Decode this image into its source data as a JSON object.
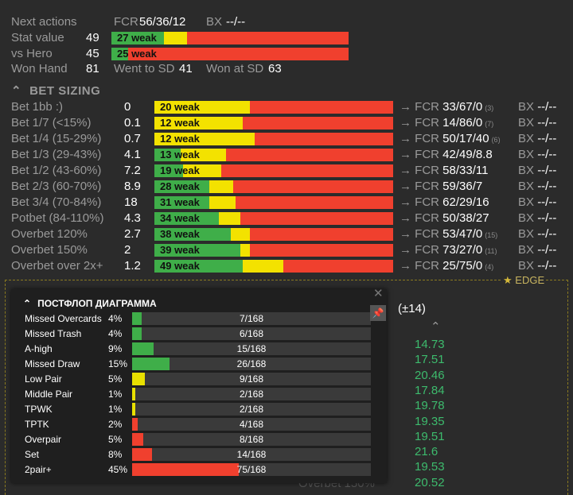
{
  "top": {
    "next_actions": {
      "label": "Next actions",
      "fcr_label": "FCR",
      "fcr": "56/36/12",
      "bx_label": "BX",
      "bx": "--/--"
    },
    "stat_value": {
      "label": "Stat value",
      "value": "49",
      "bar_text": "27 weak",
      "green": 0.22,
      "yellow": 0.1
    },
    "vs_hero": {
      "label": "vs Hero",
      "value": "45",
      "bar_text": "25 weak",
      "green": 0.07,
      "yellow": 0.0
    },
    "won_hand": {
      "label": "Won Hand",
      "value": "81",
      "went_label": "Went to SD",
      "went": "41",
      "won_label": "Won at SD",
      "won": "63"
    }
  },
  "bet_sizing": {
    "title": "BET SIZING",
    "arrow_fcr": "→ FCR",
    "bx_label": "BX",
    "rows": [
      {
        "name": "Bet 1bb :)",
        "num": "0",
        "bar": "20 weak",
        "green": 0,
        "yellow": 0.4,
        "fcr": "33/67/0",
        "n": "(3)",
        "bx": "--/--"
      },
      {
        "name": "Bet 1/7 (<15%)",
        "num": "0.1",
        "bar": "12 weak",
        "green": 0,
        "yellow": 0.37,
        "fcr": "14/86/0",
        "n": "(7)",
        "bx": "--/--"
      },
      {
        "name": "Bet 1/4 (15-29%)",
        "num": "0.7",
        "bar": "12 weak",
        "green": 0,
        "yellow": 0.42,
        "fcr": "50/17/40",
        "n": "(6)",
        "bx": "--/--"
      },
      {
        "name": "Bet 1/3 (29-43%)",
        "num": "4.1",
        "bar": "13 weak",
        "green": 0.11,
        "yellow": 0.19,
        "fcr": "42/49/8.8",
        "n": "",
        "bx": "--/--"
      },
      {
        "name": "Bet 1/2 (43-60%)",
        "num": "7.2",
        "bar": "19 weak",
        "green": 0.12,
        "yellow": 0.16,
        "fcr": "58/33/11",
        "n": "",
        "bx": "--/--"
      },
      {
        "name": "Bet 2/3 (60-70%)",
        "num": "8.9",
        "bar": "28 weak",
        "green": 0.23,
        "yellow": 0.1,
        "fcr": "59/36/7",
        "n": "",
        "bx": "--/--"
      },
      {
        "name": "Bet 3/4 (70-84%)",
        "num": "18",
        "bar": "31 weak",
        "green": 0.23,
        "yellow": 0.11,
        "fcr": "62/29/16",
        "n": "",
        "bx": "--/--"
      },
      {
        "name": "Potbet (84-110%)",
        "num": "4.3",
        "bar": "34 weak",
        "green": 0.27,
        "yellow": 0.09,
        "fcr": "50/38/27",
        "n": "",
        "bx": "--/--"
      },
      {
        "name": "Overbet 120%",
        "num": "2.7",
        "bar": "38 weak",
        "green": 0.32,
        "yellow": 0.08,
        "fcr": "53/47/0",
        "n": "(15)",
        "bx": "--/--"
      },
      {
        "name": "Overbet 150%",
        "num": "2",
        "bar": "39 weak",
        "green": 0.36,
        "yellow": 0.04,
        "fcr": "73/27/0",
        "n": "(11)",
        "bx": "--/--"
      },
      {
        "name": "Overbet over 2x+",
        "num": "1.2",
        "bar": "49 weak",
        "green": 0.37,
        "yellow": 0.17,
        "fcr": "25/75/0",
        "n": "(4)",
        "bx": "--/--"
      }
    ]
  },
  "edge": {
    "label": "EDGE"
  },
  "background": {
    "pm": "(±14)",
    "nums": [
      "14.73",
      "17.51",
      "20.46",
      "17.84",
      "19.78",
      "19.35",
      "19.51",
      "21.6",
      "19.53",
      "20.52"
    ],
    "ghost": "Overbet 150%"
  },
  "popup": {
    "title": "ПОСТФЛОП ДИАГРАММА",
    "pin_icon": "pin-icon",
    "rows": [
      {
        "name": "Missed Overcards",
        "pct": "4%",
        "count": "7/168",
        "color": "#3fae49",
        "frac": 0.04
      },
      {
        "name": "Missed Trash",
        "pct": "4%",
        "count": "6/168",
        "color": "#3fae49",
        "frac": 0.04
      },
      {
        "name": "A-high",
        "pct": "9%",
        "count": "15/168",
        "color": "#3fae49",
        "frac": 0.09
      },
      {
        "name": "Missed Draw",
        "pct": "15%",
        "count": "26/168",
        "color": "#3fae49",
        "frac": 0.155
      },
      {
        "name": "Low Pair",
        "pct": "5%",
        "count": "9/168",
        "color": "#e8e000",
        "frac": 0.054
      },
      {
        "name": "Middle Pair",
        "pct": "1%",
        "count": "2/168",
        "color": "#e8e000",
        "frac": 0.012
      },
      {
        "name": "TPWK",
        "pct": "1%",
        "count": "2/168",
        "color": "#e8e000",
        "frac": 0.012
      },
      {
        "name": "TPTK",
        "pct": "2%",
        "count": "4/168",
        "color": "#f0402e",
        "frac": 0.024
      },
      {
        "name": "Overpair",
        "pct": "5%",
        "count": "8/168",
        "color": "#f0402e",
        "frac": 0.048
      },
      {
        "name": "Set",
        "pct": "8%",
        "count": "14/168",
        "color": "#f0402e",
        "frac": 0.083
      },
      {
        "name": "2pair+",
        "pct": "45%",
        "count": "75/168",
        "color": "#f0402e",
        "frac": 0.446
      }
    ]
  }
}
